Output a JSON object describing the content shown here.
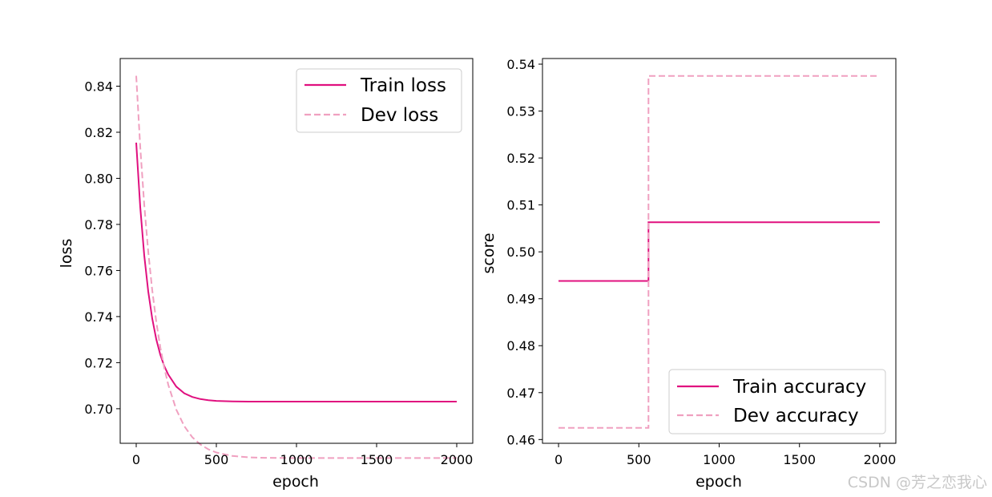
{
  "chart_data": [
    {
      "type": "line",
      "xlabel": "epoch",
      "ylabel": "loss",
      "xlim": [
        -100,
        2100
      ],
      "ylim": [
        0.685,
        0.852
      ],
      "xticks": [
        0,
        500,
        1000,
        1500,
        2000
      ],
      "xtick_labels": [
        "0",
        "500",
        "1000",
        "1500",
        "2000"
      ],
      "yticks": [
        0.7,
        0.72,
        0.74,
        0.76,
        0.78,
        0.8,
        0.82,
        0.84
      ],
      "ytick_labels": [
        "0.70",
        "0.72",
        "0.74",
        "0.76",
        "0.78",
        "0.80",
        "0.82",
        "0.84"
      ],
      "legend_position": "top-right",
      "series": [
        {
          "name": "Train loss",
          "color": "#e0107f",
          "dash": "solid",
          "x": [
            0,
            25,
            50,
            75,
            100,
            125,
            150,
            175,
            200,
            250,
            300,
            350,
            400,
            450,
            500,
            600,
            700,
            800,
            1000,
            1500,
            2000
          ],
          "values": [
            0.8155,
            0.7876,
            0.7666,
            0.7509,
            0.7391,
            0.7302,
            0.7235,
            0.7185,
            0.7148,
            0.7096,
            0.7067,
            0.7051,
            0.7042,
            0.7037,
            0.7034,
            0.7032,
            0.7031,
            0.7031,
            0.7031,
            0.7031,
            0.7031
          ]
        },
        {
          "name": "Dev loss",
          "color": "#f0a0c0",
          "dash": "dashed",
          "x": [
            0,
            25,
            50,
            75,
            100,
            125,
            150,
            175,
            200,
            250,
            300,
            350,
            400,
            450,
            500,
            600,
            700,
            800,
            1000,
            1500,
            2000
          ],
          "values": [
            0.8445,
            0.8137,
            0.7886,
            0.7681,
            0.7514,
            0.7378,
            0.7268,
            0.7177,
            0.7104,
            0.6996,
            0.6924,
            0.6876,
            0.6845,
            0.6824,
            0.681,
            0.6795,
            0.6789,
            0.6787,
            0.6786,
            0.6786,
            0.6786
          ]
        }
      ]
    },
    {
      "type": "line",
      "xlabel": "epoch",
      "ylabel": "score",
      "xlim": [
        -100,
        2100
      ],
      "ylim": [
        0.4592,
        0.5412
      ],
      "xticks": [
        0,
        500,
        1000,
        1500,
        2000
      ],
      "xtick_labels": [
        "0",
        "500",
        "1000",
        "1500",
        "2000"
      ],
      "yticks": [
        0.46,
        0.47,
        0.48,
        0.49,
        0.5,
        0.51,
        0.52,
        0.53,
        0.54
      ],
      "ytick_labels": [
        "0.46",
        "0.47",
        "0.48",
        "0.49",
        "0.50",
        "0.51",
        "0.52",
        "0.53",
        "0.54"
      ],
      "legend_position": "bottom-right",
      "series": [
        {
          "name": "Train accuracy",
          "color": "#e0107f",
          "dash": "solid",
          "x": [
            0,
            560,
            560,
            2000
          ],
          "values": [
            0.4938,
            0.4938,
            0.5063,
            0.5063
          ]
        },
        {
          "name": "Dev accuracy",
          "color": "#f0a0c0",
          "dash": "dashed",
          "x": [
            0,
            560,
            560,
            2000
          ],
          "values": [
            0.4625,
            0.4625,
            0.5375,
            0.5375
          ]
        }
      ]
    }
  ],
  "watermark": "CSDN @芳之恋我心"
}
